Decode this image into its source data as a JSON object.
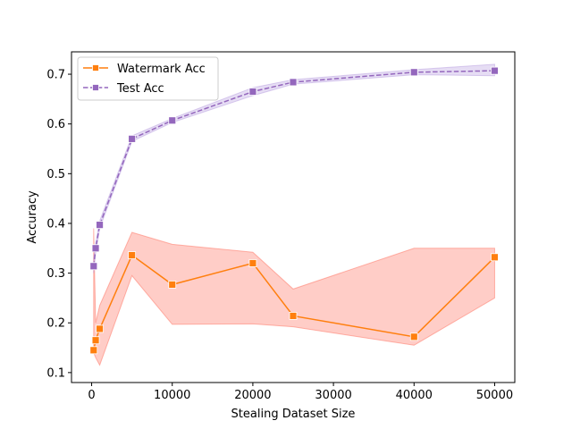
{
  "chart_data": {
    "type": "line",
    "title": "",
    "xlabel": "Stealing Dataset Size",
    "ylabel": "Accuracy",
    "xlim": [
      -2500,
      52500
    ],
    "ylim": [
      0.08,
      0.745
    ],
    "xticks": [
      0,
      10000,
      20000,
      30000,
      40000,
      50000
    ],
    "yticks": [
      0.1,
      0.2,
      0.3,
      0.4,
      0.5,
      0.6,
      0.7
    ],
    "x_tick_labels": [
      "0",
      "10000",
      "20000",
      "30000",
      "40000",
      "50000"
    ],
    "y_tick_labels": [
      "0.1",
      "0.2",
      "0.3",
      "0.4",
      "0.5",
      "0.6",
      "0.7"
    ],
    "grid": false,
    "legend_position": "top-left",
    "series": [
      {
        "name": "Watermark Acc",
        "color": "#ff7f0e",
        "band_color": "#ff6f5e",
        "linestyle": "solid",
        "marker": "square",
        "x": [
          250,
          500,
          1000,
          5000,
          10000,
          20000,
          25000,
          40000,
          50000
        ],
        "y": [
          0.145,
          0.165,
          0.188,
          0.336,
          0.277,
          0.32,
          0.214,
          0.172,
          0.332
        ],
        "lower": [
          0.14,
          0.13,
          0.115,
          0.295,
          0.197,
          0.198,
          0.192,
          0.155,
          0.25
        ],
        "upper": [
          0.39,
          0.2,
          0.235,
          0.382,
          0.358,
          0.342,
          0.268,
          0.35,
          0.35
        ]
      },
      {
        "name": "Test Acc",
        "color": "#9467bd",
        "band_color": "#b89de0",
        "linestyle": "dashed",
        "marker": "square",
        "x": [
          250,
          500,
          1000,
          5000,
          10000,
          20000,
          25000,
          40000,
          50000
        ],
        "y": [
          0.314,
          0.35,
          0.397,
          0.57,
          0.607,
          0.665,
          0.684,
          0.704,
          0.707
        ],
        "lower": [
          0.3,
          0.34,
          0.39,
          0.565,
          0.603,
          0.657,
          0.68,
          0.699,
          0.697
        ],
        "upper": [
          0.33,
          0.36,
          0.405,
          0.576,
          0.611,
          0.673,
          0.689,
          0.709,
          0.72
        ]
      }
    ]
  }
}
